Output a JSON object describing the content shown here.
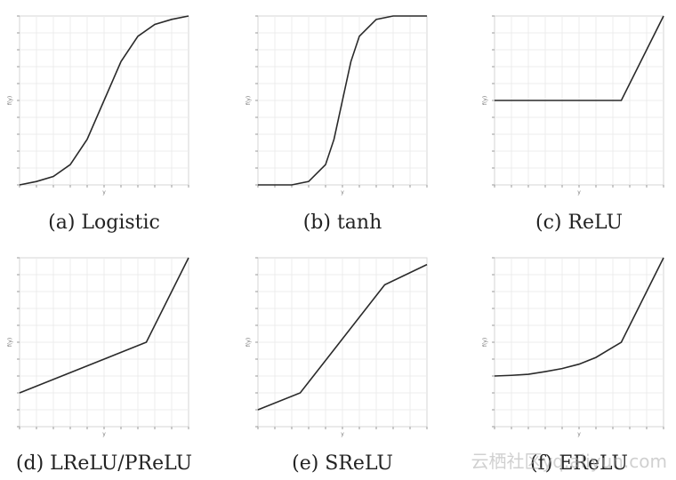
{
  "chart_data": [
    {
      "type": "line",
      "xlabel": "y",
      "ylabel": "f(y)",
      "xlim": [
        -5,
        5
      ],
      "ylim": [
        0,
        1
      ],
      "series": [
        {
          "x": [
            -5,
            -4,
            -3,
            -2,
            -1,
            0,
            1,
            2,
            3,
            4,
            5
          ],
          "y": [
            0.0,
            0.02,
            0.05,
            0.12,
            0.27,
            0.5,
            0.73,
            0.88,
            0.95,
            0.98,
            1.0
          ]
        }
      ],
      "caption": "(a) Logistic"
    },
    {
      "type": "line",
      "xlabel": "y",
      "ylabel": "f(y)",
      "xlim": [
        -5,
        5
      ],
      "ylim": [
        -1,
        1
      ],
      "series": [
        {
          "x": [
            -5,
            -3,
            -2,
            -1,
            -0.5,
            0,
            0.5,
            1,
            2,
            3,
            5
          ],
          "y": [
            -1.0,
            -1.0,
            -0.96,
            -0.76,
            -0.46,
            0.0,
            0.46,
            0.76,
            0.96,
            1.0,
            1.0
          ]
        }
      ],
      "caption": "(b) tanh"
    },
    {
      "type": "line",
      "xlabel": "y",
      "ylabel": "f(y)",
      "xlim": [
        -5,
        5
      ],
      "ylim": [
        -2.5,
        2.5
      ],
      "series": [
        {
          "x": [
            -5,
            2.5,
            5
          ],
          "y": [
            0,
            0,
            2.5
          ]
        }
      ],
      "caption": "(c) ReLU"
    },
    {
      "type": "line",
      "xlabel": "y",
      "ylabel": "f(y)",
      "xlim": [
        -5,
        5
      ],
      "ylim": [
        -2.5,
        2.5
      ],
      "series": [
        {
          "x": [
            -5,
            2.5,
            5
          ],
          "y": [
            -1.5,
            0,
            2.5
          ]
        }
      ],
      "caption": "(d) LReLU/PReLU"
    },
    {
      "type": "line",
      "xlabel": "y",
      "ylabel": "f(y)",
      "xlim": [
        -5,
        5
      ],
      "ylim": [
        -2.5,
        2.5
      ],
      "series": [
        {
          "x": [
            -5,
            -2.5,
            2.5,
            5
          ],
          "y": [
            -2.0,
            -1.5,
            1.7,
            2.3
          ]
        }
      ],
      "caption": "(e) SReLU"
    },
    {
      "type": "line",
      "xlabel": "y",
      "ylabel": "f(y)",
      "xlim": [
        -5,
        5
      ],
      "ylim": [
        -2.5,
        2.5
      ],
      "series": [
        {
          "x": [
            -5,
            -4,
            -3,
            -2,
            -1,
            0,
            1,
            2,
            2.5,
            5
          ],
          "y": [
            -1.0,
            -0.98,
            -0.95,
            -0.87,
            -0.78,
            -0.65,
            -0.45,
            -0.15,
            0.0,
            2.5
          ]
        }
      ],
      "caption": "(f) EReLU"
    }
  ],
  "watermark": "云栖社区yq.aliyun.com"
}
